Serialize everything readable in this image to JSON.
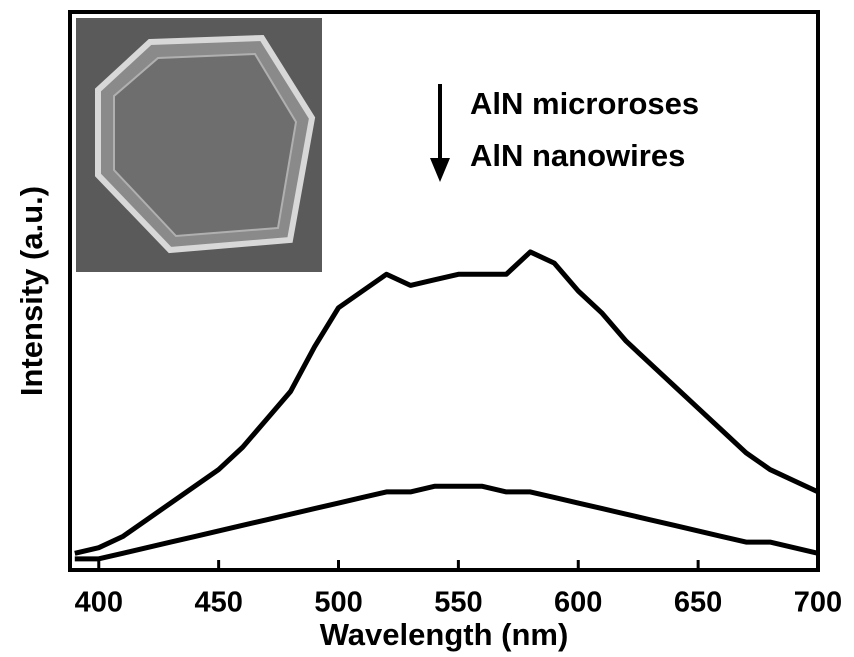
{
  "chart_data": {
    "type": "line",
    "xlabel": "Wavelength (nm)",
    "ylabel": "Intensity (a.u.)",
    "x": [
      390,
      400,
      410,
      420,
      430,
      440,
      450,
      460,
      470,
      480,
      490,
      500,
      510,
      520,
      530,
      540,
      550,
      560,
      570,
      580,
      590,
      600,
      610,
      620,
      630,
      640,
      650,
      660,
      670,
      680,
      690,
      700
    ],
    "series": [
      {
        "name": "AlN microroses",
        "color": "#000000",
        "values": [
          0.03,
          0.04,
          0.06,
          0.09,
          0.12,
          0.15,
          0.18,
          0.22,
          0.27,
          0.32,
          0.4,
          0.47,
          0.5,
          0.53,
          0.51,
          0.52,
          0.53,
          0.53,
          0.53,
          0.57,
          0.55,
          0.5,
          0.46,
          0.41,
          0.37,
          0.33,
          0.29,
          0.25,
          0.21,
          0.18,
          0.16,
          0.14
        ]
      },
      {
        "name": "AlN nanowires",
        "color": "#000000",
        "values": [
          0.02,
          0.02,
          0.03,
          0.04,
          0.05,
          0.06,
          0.07,
          0.08,
          0.09,
          0.1,
          0.11,
          0.12,
          0.13,
          0.14,
          0.14,
          0.15,
          0.15,
          0.15,
          0.14,
          0.14,
          0.13,
          0.12,
          0.11,
          0.1,
          0.09,
          0.08,
          0.07,
          0.06,
          0.05,
          0.05,
          0.04,
          0.03
        ]
      }
    ],
    "xlim": [
      388,
      700
    ],
    "xticks": [
      400,
      450,
      500,
      550,
      600,
      650,
      700
    ],
    "ylim": [
      0,
      1
    ]
  }
}
